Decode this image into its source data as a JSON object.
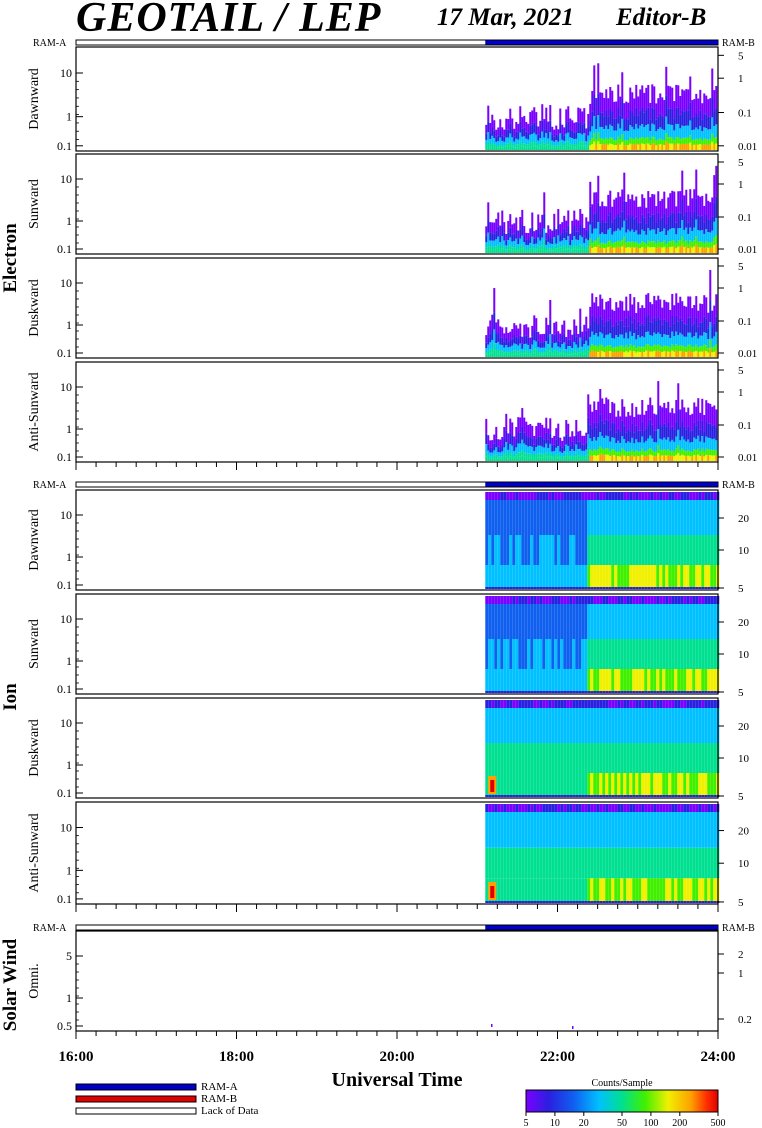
{
  "header": {
    "title": "GEOTAIL / LEP",
    "date": "17 Mar, 2021",
    "editor": "Editor-B"
  },
  "ram_labels": {
    "a": "RAM-A",
    "b": "RAM-B"
  },
  "chart_data": {
    "type": "heatmap",
    "x_axis": {
      "label": "Universal Time",
      "range": [
        "16:00",
        "24:00"
      ],
      "ticks": [
        "16:00",
        "18:00",
        "20:00",
        "22:00",
        "24:00"
      ],
      "data_start": "21:06"
    },
    "groups": [
      {
        "name": "Electron",
        "panels": [
          {
            "name": "Dawnward",
            "y_ticks": [
              "10",
              "1",
              "0.1"
            ],
            "right_ticks": [
              "5",
              "1",
              "0.1",
              "0.01"
            ]
          },
          {
            "name": "Sunward",
            "y_ticks": [
              "10",
              "1",
              "0.1"
            ],
            "right_ticks": [
              "5",
              "1",
              "0.1",
              "0.01"
            ]
          },
          {
            "name": "Duskward",
            "y_ticks": [
              "10",
              "1",
              "0.1"
            ],
            "right_ticks": [
              "5",
              "1",
              "0.1",
              "0.01"
            ]
          },
          {
            "name": "Anti-Sunward",
            "y_ticks": [
              "10",
              "1",
              "0.1"
            ],
            "right_ticks": [
              "5",
              "1",
              "0.1",
              "0.01"
            ]
          }
        ]
      },
      {
        "name": "Ion",
        "panels": [
          {
            "name": "Dawnward",
            "y_ticks": [
              "10",
              "1",
              "0.1"
            ],
            "right_ticks": [
              "20",
              "10",
              "5"
            ]
          },
          {
            "name": "Sunward",
            "y_ticks": [
              "10",
              "1",
              "0.1"
            ],
            "right_ticks": [
              "20",
              "10",
              "5"
            ]
          },
          {
            "name": "Duskward",
            "y_ticks": [
              "10",
              "1",
              "0.1"
            ],
            "right_ticks": [
              "20",
              "10",
              "5"
            ]
          },
          {
            "name": "Anti-Sunward",
            "y_ticks": [
              "10",
              "1",
              "0.1"
            ],
            "right_ticks": [
              "20",
              "10",
              "5"
            ]
          }
        ]
      },
      {
        "name": "Solar Wind",
        "panels": [
          {
            "name": "Omni.",
            "y_ticks": [
              "5",
              "1",
              "0.5"
            ],
            "right_ticks": [
              "2",
              "1",
              "0.2"
            ]
          }
        ]
      }
    ],
    "colorbar": {
      "title": "Counts/Sample",
      "ticks": [
        "5",
        "10",
        "20",
        "50",
        "100",
        "200",
        "500"
      ],
      "colors": [
        "#7a00ff",
        "#2a20e0",
        "#1060f0",
        "#00c0ff",
        "#00e090",
        "#40f000",
        "#f0f000",
        "#ffa000",
        "#ff3000",
        "#e00000"
      ]
    },
    "legend": [
      {
        "label": "RAM-A",
        "color": "#0000c8"
      },
      {
        "label": "RAM-B",
        "color": "#e00000"
      },
      {
        "label": "Lack of Data",
        "color": "#ffffff"
      }
    ]
  }
}
